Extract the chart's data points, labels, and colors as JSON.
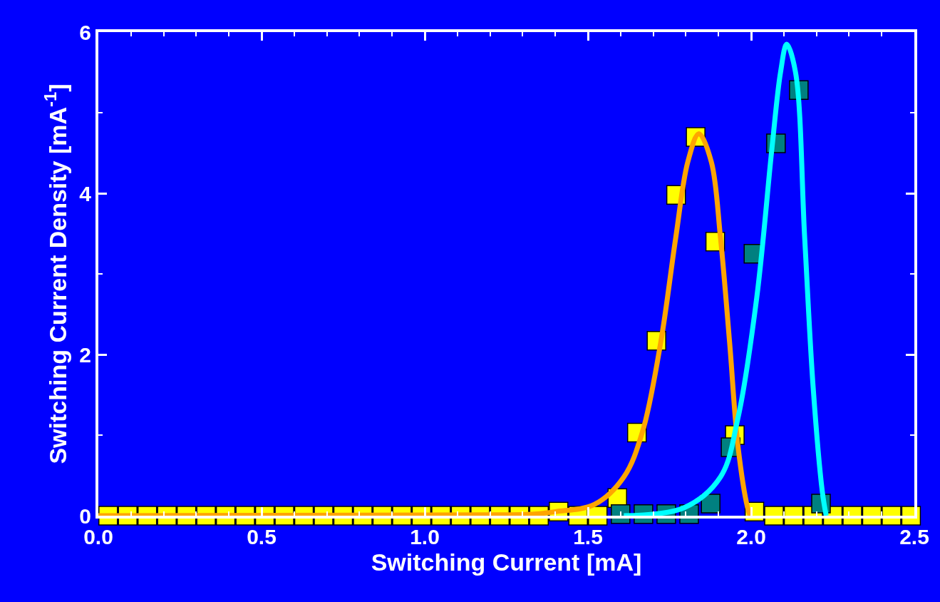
{
  "chart_data": {
    "type": "scatter",
    "xlabel": "Switching Current [mA]",
    "ylabel": "Switching Current Density [mA$^{-1}$]",
    "grid": false,
    "xlim": [
      0,
      2.5
    ],
    "ylim": [
      0,
      6
    ],
    "xticks": [
      {
        "value": 0,
        "label": "0.0"
      },
      0.5,
      {
        "value": 1,
        "label": "1.0"
      },
      1.5,
      {
        "value": 2,
        "label": "2.0"
      },
      2.5
    ],
    "yticks": [
      0,
      2,
      4,
      6
    ],
    "series": [
      {
        "marker": "square",
        "color": "#ffff00",
        "x": [
          0.03,
          0.09,
          0.15,
          0.21,
          0.27,
          0.33,
          0.39,
          0.45,
          0.51,
          0.57,
          0.63,
          0.69,
          0.75,
          0.81,
          0.87,
          0.93,
          0.99,
          1.05,
          1.11,
          1.17,
          1.23,
          1.29,
          1.35,
          1.41,
          1.47,
          1.53,
          1.59,
          1.65,
          1.71,
          1.77,
          1.83,
          1.89,
          1.95,
          2.01,
          2.07,
          2.13,
          2.19,
          2.25,
          2.31,
          2.37,
          2.43,
          2.49
        ],
        "values": [
          0,
          0,
          0,
          0,
          0,
          0,
          0,
          0,
          0,
          0,
          0,
          0,
          0,
          0,
          0,
          0,
          0,
          0,
          0,
          0,
          0,
          0,
          0,
          0.05,
          0,
          0,
          0.22,
          1.03,
          2.17,
          3.98,
          4.7,
          3.4,
          1.0,
          0.05,
          0,
          0,
          0,
          0,
          0,
          0,
          0,
          0
        ]
      },
      {
        "marker": "square",
        "color": "#008080",
        "x": [
          1.6,
          1.67,
          1.74,
          1.81,
          1.876,
          1.937,
          2.007,
          2.076,
          2.146,
          2.214
        ],
        "values": [
          0.02,
          0.02,
          0.02,
          0.02,
          0.15,
          0.85,
          3.25,
          4.62,
          5.28,
          0.15
        ]
      },
      {
        "type": "line",
        "marker": "none",
        "color": "#ffa500",
        "x": [
          0,
          1.2,
          1.336,
          1.4,
          1.52,
          1.61,
          1.667,
          1.723,
          1.769,
          1.806,
          1.84,
          1.878,
          1.906,
          1.934,
          1.96,
          1.989,
          1.997
        ],
        "values": [
          0,
          0.01,
          0.02,
          0.05,
          0.14,
          0.48,
          1.04,
          2.15,
          3.45,
          4.39,
          4.74,
          4.39,
          3.45,
          2.15,
          0.85,
          0.1,
          0
        ]
      },
      {
        "type": "line",
        "marker": "none",
        "color": "#00ffff",
        "x": [
          1.61,
          1.795,
          1.906,
          1.96,
          2.017,
          2.064,
          2.09,
          2.109,
          2.136,
          2.164,
          2.19,
          2.218,
          2.23
        ],
        "values": [
          0,
          0.1,
          0.48,
          1.22,
          2.7,
          4.57,
          5.5,
          5.85,
          5.5,
          3.45,
          1.59,
          0.3,
          0
        ]
      }
    ]
  }
}
